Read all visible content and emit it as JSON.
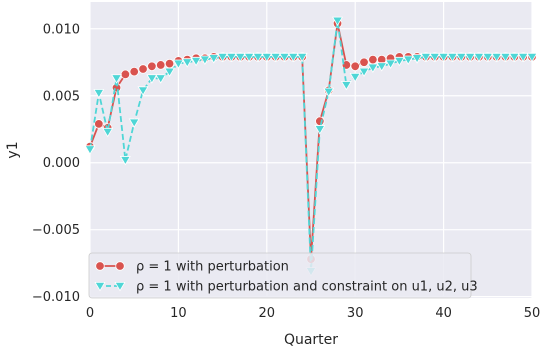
{
  "chart_data": {
    "type": "line",
    "xlabel": "Quarter",
    "ylabel": "y1",
    "xlim": [
      0,
      50
    ],
    "ylim": [
      -0.0101,
      0.012
    ],
    "xticks": [
      0,
      10,
      20,
      30,
      40,
      50
    ],
    "xtick_labels": [
      "0",
      "10",
      "20",
      "30",
      "40",
      "50"
    ],
    "yticks": [
      -0.01,
      -0.005,
      0.0,
      0.005,
      0.01
    ],
    "ytick_labels": [
      "−0.010",
      "−0.005",
      "0.000",
      "0.005",
      "0.010"
    ],
    "grid": true,
    "legend_position": "lower-left",
    "x": [
      0,
      1,
      2,
      3,
      4,
      5,
      6,
      7,
      8,
      9,
      10,
      11,
      12,
      13,
      14,
      15,
      16,
      17,
      18,
      19,
      20,
      21,
      22,
      23,
      24,
      25,
      26,
      27,
      28,
      29,
      30,
      31,
      32,
      33,
      34,
      35,
      36,
      37,
      38,
      39,
      40,
      41,
      42,
      43,
      44,
      45,
      46,
      47,
      48,
      49,
      50
    ],
    "series": [
      {
        "name": "ρ = 1 with perturbation",
        "color": "#d9534f",
        "marker": "circle",
        "line_style": "solid",
        "values": [
          0.0012,
          0.0029,
          0.0026,
          0.0056,
          0.0066,
          0.0068,
          0.007,
          0.0072,
          0.0073,
          0.0074,
          0.0076,
          0.0077,
          0.0078,
          0.0078,
          0.0079,
          0.0079,
          0.0079,
          0.0079,
          0.0079,
          0.0079,
          0.0079,
          0.0079,
          0.0079,
          0.0079,
          0.0079,
          -0.0072,
          0.0031,
          0.0054,
          0.0104,
          0.0073,
          0.0072,
          0.0075,
          0.0077,
          0.0077,
          0.0078,
          0.0079,
          0.0079,
          0.0079,
          0.0079,
          0.0079,
          0.0079,
          0.0079,
          0.0079,
          0.0079,
          0.0079,
          0.0079,
          0.0079,
          0.0079,
          0.0079,
          0.0079,
          0.0079
        ]
      },
      {
        "name": "ρ = 1 with perturbation and constraint on u1, u2, u3",
        "color": "#4fd6d6",
        "marker": "triangle-down",
        "line_style": "dashed",
        "values": [
          0.001,
          0.0052,
          0.0023,
          0.0063,
          0.0002,
          0.003,
          0.0054,
          0.0063,
          0.0063,
          0.0068,
          0.0074,
          0.0075,
          0.0076,
          0.0077,
          0.0078,
          0.0079,
          0.0079,
          0.0079,
          0.0079,
          0.0079,
          0.0079,
          0.0079,
          0.0079,
          0.0079,
          0.0079,
          -0.0081,
          0.0025,
          0.0053,
          0.0106,
          0.0058,
          0.0064,
          0.0068,
          0.0071,
          0.0072,
          0.0074,
          0.0076,
          0.0077,
          0.0078,
          0.0079,
          0.0079,
          0.0079,
          0.0079,
          0.0079,
          0.0079,
          0.0079,
          0.0079,
          0.0079,
          0.0079,
          0.0079,
          0.0079,
          0.0079
        ]
      }
    ]
  }
}
